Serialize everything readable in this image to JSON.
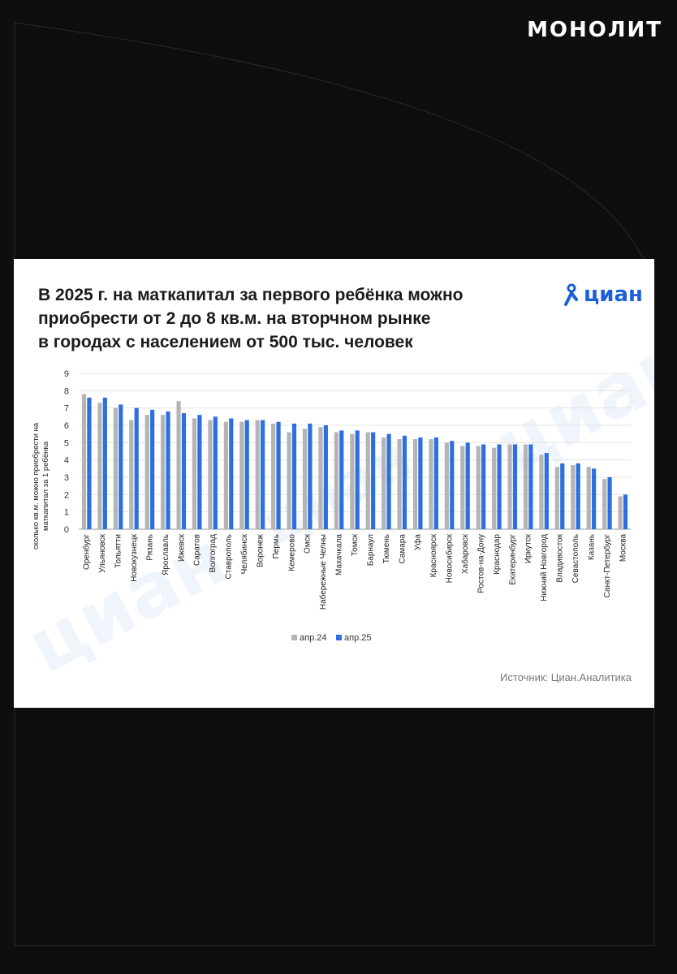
{
  "header": {
    "brand": "МОНОЛИТ"
  },
  "card": {
    "title_lines": [
      "В 2025 г. на маткапитал за первого ребёнка можно",
      "приобрести от 2 до 8 кв.м. на вторчном рынке",
      "в городах с населением от 500 тыс. человек"
    ],
    "logo_text": "циан",
    "watermark_text": "циан",
    "source": "Источник: Циан.Аналитика"
  },
  "colors": {
    "series_prev": "#b4b4b4",
    "series_curr": "#2d6fe0",
    "accent": "#1a5fd6"
  },
  "chart_data": {
    "type": "bar",
    "ylabel_lines": [
      "сколько кв.м. можно приобрести на",
      "маткапитал за 1 ребёнка"
    ],
    "ylim": [
      0,
      9
    ],
    "yticks": [
      0,
      1,
      2,
      3,
      4,
      5,
      6,
      7,
      8,
      9
    ],
    "grid": true,
    "legend_position": "bottom-center",
    "categories": [
      "Оренбург",
      "Ульяновск",
      "Тольятти",
      "Новокузнецк",
      "Рязань",
      "Ярославль",
      "Ижевск",
      "Саратов",
      "Волгоград",
      "Ставрополь",
      "Челябинск",
      "Воронеж",
      "Пермь",
      "Кемерово",
      "Омск",
      "Набережные Челны",
      "Махачкала",
      "Томск",
      "Барнаул",
      "Тюмень",
      "Самара",
      "Уфа",
      "Красноярск",
      "Новосибирск",
      "Хабаровск",
      "Ростов-на-Дону",
      "Краснодар",
      "Екатеринбург",
      "Иркутск",
      "Нижний Новгород",
      "Владивосток",
      "Севастополь",
      "Казань",
      "Санкт-Петербург",
      "Москва"
    ],
    "series": [
      {
        "name": "апр.24",
        "values": [
          7.8,
          7.3,
          7.0,
          6.3,
          6.6,
          6.6,
          7.4,
          6.4,
          6.3,
          6.2,
          6.2,
          6.3,
          6.1,
          5.6,
          5.8,
          5.9,
          5.6,
          5.5,
          5.6,
          5.3,
          5.2,
          5.2,
          5.2,
          5.0,
          4.8,
          4.8,
          4.7,
          4.9,
          4.9,
          4.3,
          3.6,
          3.7,
          3.6,
          2.9,
          1.9
        ]
      },
      {
        "name": "апр.25",
        "values": [
          7.6,
          7.6,
          7.2,
          7.0,
          6.9,
          6.8,
          6.7,
          6.6,
          6.5,
          6.4,
          6.3,
          6.3,
          6.2,
          6.1,
          6.1,
          6.0,
          5.7,
          5.7,
          5.6,
          5.5,
          5.4,
          5.3,
          5.3,
          5.1,
          5.0,
          4.9,
          4.9,
          4.9,
          4.9,
          4.4,
          3.8,
          3.8,
          3.5,
          3.0,
          2.0
        ]
      }
    ]
  }
}
